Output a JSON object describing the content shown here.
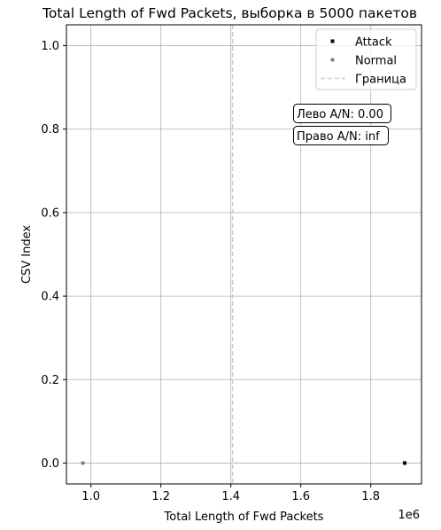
{
  "chart_data": {
    "type": "scatter",
    "title": "Total Length of Fwd Packets, выборка в 5000 пакетов",
    "xlabel": "Total Length of Fwd Packets",
    "ylabel": "CSV Index",
    "x_scale_label": "1e6",
    "xlim": [
      0.93,
      1.945
    ],
    "ylim": [
      -0.05,
      1.05
    ],
    "x_ticks": [
      1.0,
      1.2,
      1.4,
      1.6,
      1.8
    ],
    "x_tick_labels": [
      "1.0",
      "1.2",
      "1.4",
      "1.6",
      "1.8"
    ],
    "y_ticks": [
      0.0,
      0.2,
      0.4,
      0.6,
      0.8,
      1.0
    ],
    "y_tick_labels": [
      "0.0",
      "0.2",
      "0.4",
      "0.6",
      "0.8",
      "1.0"
    ],
    "grid": true,
    "series": [
      {
        "name": "Attack",
        "marker": "square",
        "color": "#000000",
        "points": [
          {
            "x": 1.897,
            "y": 0.0
          }
        ]
      },
      {
        "name": "Normal",
        "marker": "circle",
        "color": "#808080",
        "points": [
          {
            "x": 0.977,
            "y": 0.0
          }
        ]
      }
    ],
    "boundary": {
      "name": "Граница",
      "x": 1.405,
      "color": "#cccccc",
      "style": "dashed"
    },
    "legend": {
      "position": "top-right",
      "entries": [
        {
          "label": "Attack",
          "kind": "square-marker",
          "color": "#000000"
        },
        {
          "label": "Normal",
          "kind": "circle-marker",
          "color": "#808080"
        },
        {
          "label": "Граница",
          "kind": "dashed-line",
          "color": "#cccccc"
        }
      ]
    },
    "annotations": [
      {
        "text": "Лево A/N: 0.00"
      },
      {
        "text": "Право A/N: inf"
      }
    ]
  }
}
